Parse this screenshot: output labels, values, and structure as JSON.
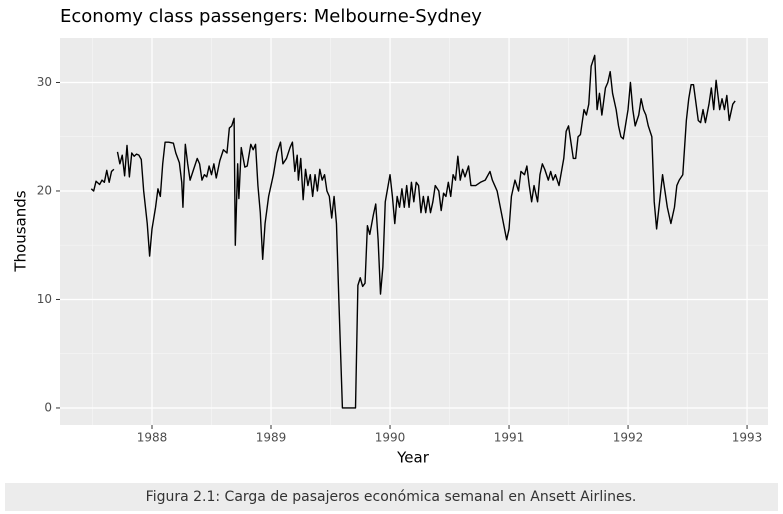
{
  "chart_data": {
    "type": "line",
    "title": "Economy class passengers: Melbourne-Sydney",
    "xlabel": "Year",
    "ylabel": "Thousands",
    "caption": "Figura 2.1: Carga de pasajeros económica semanal en Ansett Airlines.",
    "color": "#000000",
    "grid": true,
    "minor_grid": true,
    "xlim": [
      1987.227,
      1993.176
    ],
    "ylim": [
      -1.57,
      34.1
    ],
    "xticks": [
      1988,
      1989,
      1990,
      1991,
      1992,
      1993
    ],
    "yticks": [
      0,
      10,
      20,
      30
    ],
    "x": [
      1987.49,
      1987.51,
      1987.53,
      1987.56,
      1987.58,
      1987.6,
      1987.62,
      1987.64,
      1987.66,
      1987.68,
      1987.7,
      1987.71,
      1987.73,
      1987.75,
      1987.77,
      1987.79,
      1987.81,
      1987.83,
      1987.85,
      1987.87,
      1987.89,
      1987.91,
      1987.93,
      1987.96,
      1987.98,
      1988.0,
      1988.03,
      1988.05,
      1988.07,
      1988.09,
      1988.11,
      1988.14,
      1988.18,
      1988.2,
      1988.23,
      1988.25,
      1988.26,
      1988.28,
      1988.3,
      1988.32,
      1988.35,
      1988.38,
      1988.4,
      1988.42,
      1988.44,
      1988.46,
      1988.48,
      1988.5,
      1988.52,
      1988.54,
      1988.57,
      1988.6,
      1988.63,
      1988.65,
      1988.67,
      1988.69,
      1988.7,
      1988.72,
      1988.73,
      1988.75,
      1988.78,
      1988.8,
      1988.83,
      1988.85,
      1988.87,
      1988.89,
      1988.91,
      1988.93,
      1988.95,
      1988.98,
      1989.02,
      1989.05,
      1989.08,
      1989.1,
      1989.13,
      1989.16,
      1989.18,
      1989.2,
      1989.22,
      1989.23,
      1989.25,
      1989.27,
      1989.29,
      1989.31,
      1989.33,
      1989.35,
      1989.37,
      1989.39,
      1989.41,
      1989.43,
      1989.45,
      1989.47,
      1989.49,
      1989.51,
      1989.53,
      1989.55,
      1989.57,
      1989.6,
      1989.66,
      1989.71,
      1989.73,
      1989.75,
      1989.77,
      1989.79,
      1989.81,
      1989.83,
      1989.86,
      1989.88,
      1989.9,
      1989.92,
      1989.94,
      1989.96,
      1990.0,
      1990.02,
      1990.04,
      1990.06,
      1990.08,
      1990.1,
      1990.12,
      1990.14,
      1990.16,
      1990.18,
      1990.2,
      1990.22,
      1990.24,
      1990.26,
      1990.28,
      1990.3,
      1990.32,
      1990.34,
      1990.36,
      1990.38,
      1990.41,
      1990.43,
      1990.45,
      1990.47,
      1990.49,
      1990.51,
      1990.53,
      1990.55,
      1990.57,
      1990.59,
      1990.61,
      1990.63,
      1990.66,
      1990.68,
      1990.72,
      1990.76,
      1990.8,
      1990.84,
      1990.86,
      1990.88,
      1990.9,
      1990.98,
      1991.0,
      1991.02,
      1991.05,
      1991.08,
      1991.1,
      1991.13,
      1991.15,
      1991.17,
      1991.19,
      1991.21,
      1991.24,
      1991.26,
      1991.28,
      1991.3,
      1991.33,
      1991.35,
      1991.37,
      1991.39,
      1991.42,
      1991.46,
      1991.48,
      1991.5,
      1991.54,
      1991.56,
      1991.58,
      1991.6,
      1991.63,
      1991.65,
      1991.67,
      1991.69,
      1991.72,
      1991.74,
      1991.76,
      1991.78,
      1991.81,
      1991.83,
      1991.85,
      1991.87,
      1991.9,
      1991.92,
      1991.94,
      1991.96,
      1992.0,
      1992.02,
      1992.04,
      1992.06,
      1992.09,
      1992.11,
      1992.13,
      1992.15,
      1992.17,
      1992.2,
      1992.22,
      1992.24,
      1992.26,
      1992.29,
      1992.31,
      1992.33,
      1992.36,
      1992.39,
      1992.41,
      1992.43,
      1992.46,
      1992.49,
      1992.51,
      1992.53,
      1992.55,
      1992.59,
      1992.61,
      1992.63,
      1992.65,
      1992.68,
      1992.7,
      1992.72,
      1992.74,
      1992.77,
      1992.79,
      1992.81,
      1992.83,
      1992.85,
      1992.88,
      1992.9
    ],
    "values": [
      20.2,
      20.0,
      20.9,
      20.6,
      21.0,
      20.8,
      21.9,
      20.8,
      21.8,
      22.0,
      null,
      23.6,
      22.5,
      23.3,
      21.4,
      24.2,
      21.3,
      23.5,
      23.2,
      23.4,
      23.3,
      22.9,
      20,
      17,
      14.0,
      16.5,
      18.5,
      20.2,
      19.5,
      22.5,
      24.5,
      24.5,
      24.4,
      23.5,
      22.6,
      20.8,
      18.5,
      24.3,
      22.5,
      21.0,
      22.0,
      23.0,
      22.5,
      21.0,
      21.5,
      21.3,
      22.3,
      21.5,
      22.5,
      21.2,
      22.8,
      23.8,
      23.5,
      25.8,
      26.0,
      26.7,
      15.0,
      22.5,
      19.3,
      24.0,
      22.2,
      22.3,
      24.3,
      23.8,
      24.3,
      20.5,
      18,
      13.7,
      17,
      19.5,
      21.5,
      23.5,
      24.5,
      22.5,
      23.0,
      24.0,
      24.5,
      21.8,
      23.3,
      21.0,
      23.0,
      19.2,
      22.0,
      20.5,
      21.5,
      19.5,
      21.5,
      20.0,
      22.0,
      21.0,
      21.5,
      20.0,
      19.5,
      17.5,
      19.5,
      17.0,
      10,
      0,
      0,
      0,
      11.3,
      12.0,
      11.2,
      11.5,
      16.8,
      16.0,
      17.8,
      18.8,
      15.5,
      10.5,
      13.0,
      19.0,
      21.5,
      19.5,
      17.0,
      19.5,
      18.5,
      20.2,
      18.5,
      20.5,
      18.5,
      20.8,
      19.0,
      20.8,
      20.5,
      18.0,
      19.5,
      18.0,
      19.5,
      18.0,
      19.0,
      20.5,
      20.0,
      18.2,
      19.8,
      19.5,
      20.8,
      19.5,
      21.5,
      21.0,
      23.2,
      21.0,
      22.0,
      21.3,
      22.3,
      20.5,
      20.5,
      20.8,
      21.0,
      21.8,
      21.0,
      20.5,
      20.0,
      15.5,
      16.5,
      19.5,
      21.0,
      20.0,
      21.8,
      21.5,
      22.3,
      20.5,
      19.0,
      20.5,
      19.0,
      21.5,
      22.5,
      22.0,
      21.0,
      21.8,
      21.0,
      21.5,
      20.5,
      23.0,
      25.5,
      26.0,
      23.0,
      23.0,
      25.0,
      25.2,
      27.5,
      27.0,
      28.0,
      31.5,
      32.5,
      27.5,
      29.0,
      27.0,
      29.5,
      30.0,
      31.0,
      29.0,
      27.5,
      26.0,
      25.0,
      24.8,
      27.5,
      30.0,
      27.5,
      26.0,
      27.0,
      28.5,
      27.5,
      27.0,
      26.0,
      25.0,
      19,
      16.5,
      18.5,
      21.5,
      20.0,
      18.5,
      17.0,
      18.5,
      20.5,
      21.0,
      21.5,
      26.5,
      28.5,
      29.8,
      29.8,
      26.5,
      26.3,
      27.5,
      26.3,
      28.0,
      29.5,
      27.5,
      30.2,
      27.5,
      28.5,
      27.5,
      28.8,
      26.5,
      28.0,
      28.3
    ]
  }
}
